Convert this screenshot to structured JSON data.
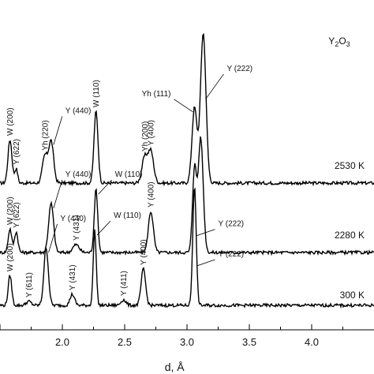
{
  "chart_data": {
    "type": "line",
    "title": "",
    "sample_label": "Y2O3",
    "xlabel": "d, Å",
    "ylabel": "",
    "xlim": [
      1.5,
      4.5
    ],
    "x_ticks": [
      1.5,
      2.0,
      2.5,
      3.0,
      3.5,
      4.0
    ],
    "x_tick_labels": [
      "1.5",
      "2.0",
      "2.5",
      "3.0",
      "3.5",
      "4.0"
    ],
    "series": [
      {
        "name": "2530 K",
        "baseline": 0,
        "peaks": [
          {
            "label": "W (200)",
            "d": 1.58,
            "height": 0.55,
            "width": 0.016
          },
          {
            "label": "Y (622)",
            "d": 1.63,
            "height": 0.18,
            "width": 0.012
          },
          {
            "label": "Yh (220)",
            "d": 1.86,
            "height": 0.34,
            "width": 0.02
          },
          {
            "label": "Y (440)",
            "d": 1.91,
            "height": 0.53,
            "width": 0.02
          },
          {
            "label": "W (110)",
            "d": 2.27,
            "height": 0.91,
            "width": 0.016
          },
          {
            "label": "Yh (200)",
            "d": 2.66,
            "height": 0.32,
            "width": 0.022
          },
          {
            "label": "Y (400)",
            "d": 2.71,
            "height": 0.4,
            "width": 0.022
          },
          {
            "label": "Yh (111)",
            "d": 3.06,
            "height": 0.95,
            "width": 0.02
          },
          {
            "label": "Y (222)",
            "d": 3.13,
            "height": 1.9,
            "width": 0.022
          }
        ]
      },
      {
        "name": "2280 K",
        "baseline": 0,
        "peaks": [
          {
            "label": "W (200)",
            "d": 1.58,
            "height": 0.3,
            "width": 0.014
          },
          {
            "label": "Y (622)",
            "d": 1.63,
            "height": 0.26,
            "width": 0.014
          },
          {
            "label": "Y (440)",
            "d": 1.91,
            "height": 0.62,
            "width": 0.02
          },
          {
            "label": "Y (431)",
            "d": 2.11,
            "height": 0.1,
            "width": 0.025
          },
          {
            "label": "W (110)",
            "d": 2.27,
            "height": 0.8,
            "width": 0.014
          },
          {
            "label": "Y (400)",
            "d": 2.71,
            "height": 0.52,
            "width": 0.02
          },
          {
            "label": "Y (222)",
            "d": 3.06,
            "height": 1.05,
            "width": 0.016
          },
          {
            "label": "",
            "d": 3.11,
            "height": 1.45,
            "width": 0.02
          }
        ]
      },
      {
        "name": "300 K",
        "baseline": 0,
        "peaks": [
          {
            "label": "W (200)",
            "d": 1.58,
            "height": 0.38,
            "width": 0.014
          },
          {
            "label": "Y (611)",
            "d": 1.73,
            "height": 0.05,
            "width": 0.02
          },
          {
            "label": "Y (440)",
            "d": 1.87,
            "height": 0.73,
            "width": 0.018
          },
          {
            "label": "Y (431)",
            "d": 2.08,
            "height": 0.14,
            "width": 0.018
          },
          {
            "label": "W (110)",
            "d": 2.26,
            "height": 0.95,
            "width": 0.012
          },
          {
            "label": "Y (411)",
            "d": 2.49,
            "height": 0.07,
            "width": 0.02
          },
          {
            "label": "Y (400)",
            "d": 2.65,
            "height": 0.46,
            "width": 0.018
          },
          {
            "label": "Y (222)",
            "d": 3.06,
            "height": 1.5,
            "width": 0.014
          }
        ]
      }
    ],
    "peak_annotations": [
      {
        "series": "2530 K",
        "text": "W (200)",
        "rotated": true
      },
      {
        "series": "2530 K",
        "text": "Y (622)",
        "rotated": true
      },
      {
        "series": "2530 K",
        "text": "Yh (220)",
        "rotated": true
      },
      {
        "series": "2530 K",
        "text": "Y (440)",
        "rotated": false
      },
      {
        "series": "2530 K",
        "text": "W (110)",
        "rotated": true
      },
      {
        "series": "2530 K",
        "text": "Yh (200)",
        "rotated": true
      },
      {
        "series": "2530 K",
        "text": "Y (400)",
        "rotated": true
      },
      {
        "series": "2530 K",
        "text": "Yh (111)",
        "rotated": false
      },
      {
        "series": "2530 K",
        "text": "Y (222)",
        "rotated": false
      },
      {
        "series": "2280 K",
        "text": "W (200)",
        "rotated": true
      },
      {
        "series": "2280 K",
        "text": "Y (622)",
        "rotated": true
      },
      {
        "series": "2280 K",
        "text": "Y (440)",
        "rotated": false
      },
      {
        "series": "2280 K",
        "text": "Y (431)",
        "rotated": true
      },
      {
        "series": "2280 K",
        "text": "W (110)",
        "rotated": false
      },
      {
        "series": "2280 K",
        "text": "Y (400)",
        "rotated": true
      },
      {
        "series": "2280 K",
        "text": "Y (222)",
        "rotated": false
      },
      {
        "series": "300 K",
        "text": "W (200)",
        "rotated": true
      },
      {
        "series": "300 K",
        "text": "Y (611)",
        "rotated": true
      },
      {
        "series": "300 K",
        "text": "Y (440)",
        "rotated": false
      },
      {
        "series": "300 K",
        "text": "Y (431)",
        "rotated": true
      },
      {
        "series": "300 K",
        "text": "W (110)",
        "rotated": false
      },
      {
        "series": "300 K",
        "text": "Y (411)",
        "rotated": true
      },
      {
        "series": "300 K",
        "text": "Y (400)",
        "rotated": true
      },
      {
        "series": "300 K",
        "text": "Y (222)",
        "rotated": false
      }
    ],
    "temperature_labels": [
      "2530 K",
      "2280 K",
      "300 K"
    ],
    "grid": false,
    "legend": "none",
    "line_color": "#000000"
  }
}
